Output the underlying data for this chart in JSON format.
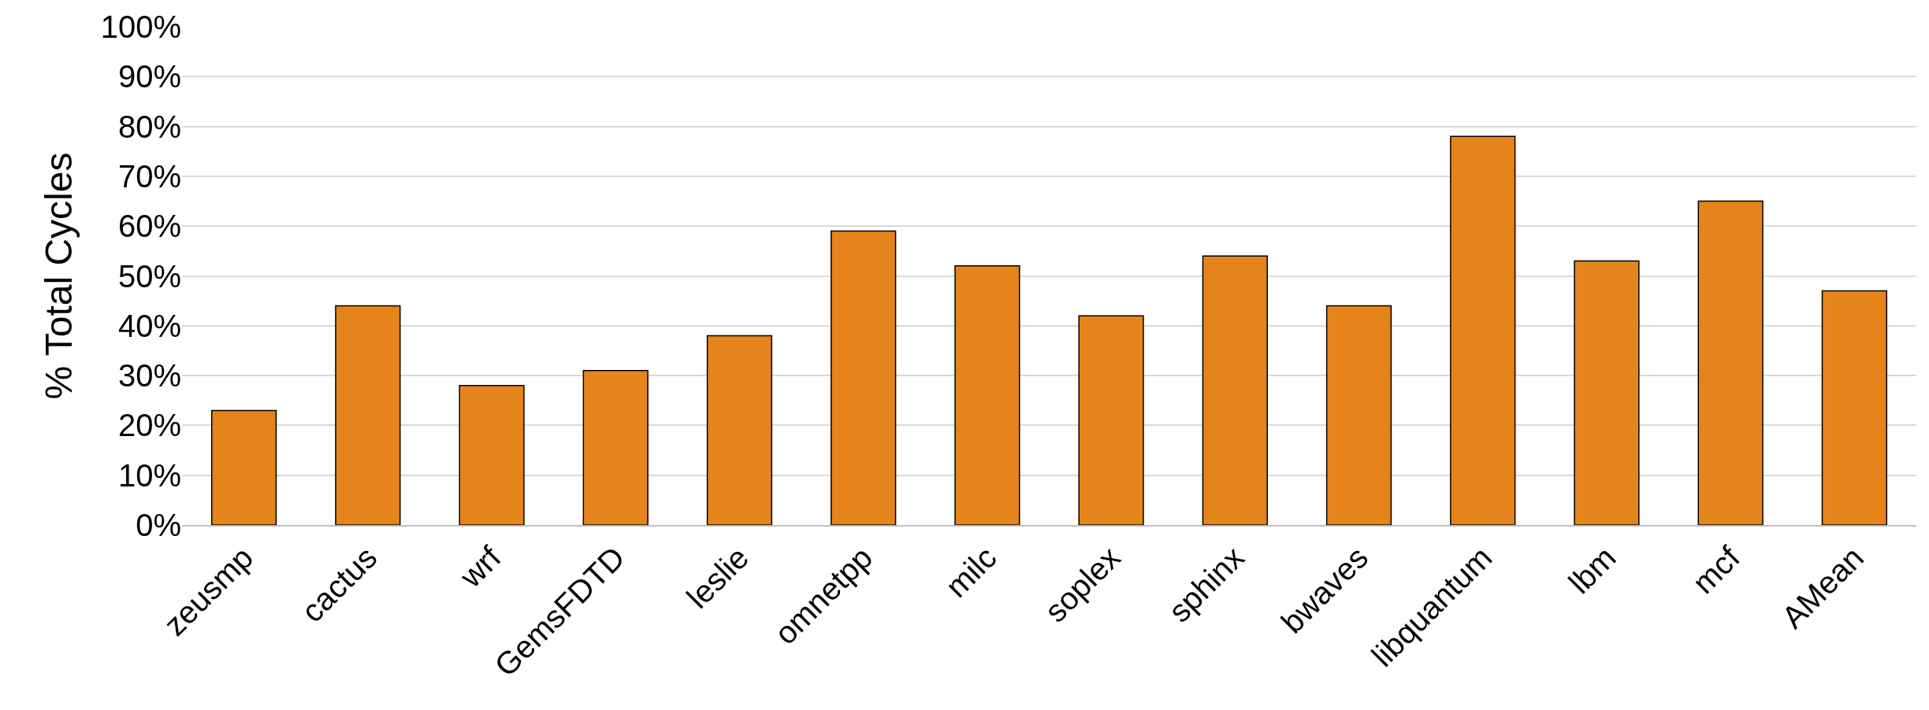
{
  "chart_data": {
    "type": "bar",
    "ylabel": "% Total Cycles",
    "categories": [
      "zeusmp",
      "cactus",
      "wrf",
      "GemsFDTD",
      "leslie",
      "omnetpp",
      "milc",
      "soplex",
      "sphinx",
      "bwaves",
      "libquantum",
      "lbm",
      "mcf",
      "AMean"
    ],
    "values": [
      23,
      44,
      28,
      31,
      38,
      59,
      52,
      42,
      54,
      44,
      78,
      53,
      65,
      47
    ],
    "color": "#e5841a",
    "ylim": [
      0,
      100
    ],
    "yticks": [
      {
        "value": 0,
        "label": "0%"
      },
      {
        "value": 10,
        "label": "10%"
      },
      {
        "value": 20,
        "label": "20%"
      },
      {
        "value": 30,
        "label": "30%"
      },
      {
        "value": 40,
        "label": "40%"
      },
      {
        "value": 50,
        "label": "50%"
      },
      {
        "value": 60,
        "label": "60%"
      },
      {
        "value": 70,
        "label": "70%"
      },
      {
        "value": 80,
        "label": "80%"
      },
      {
        "value": 90,
        "label": "90%"
      },
      {
        "value": 100,
        "label": "100%"
      }
    ],
    "grid": "y",
    "legend": false
  }
}
